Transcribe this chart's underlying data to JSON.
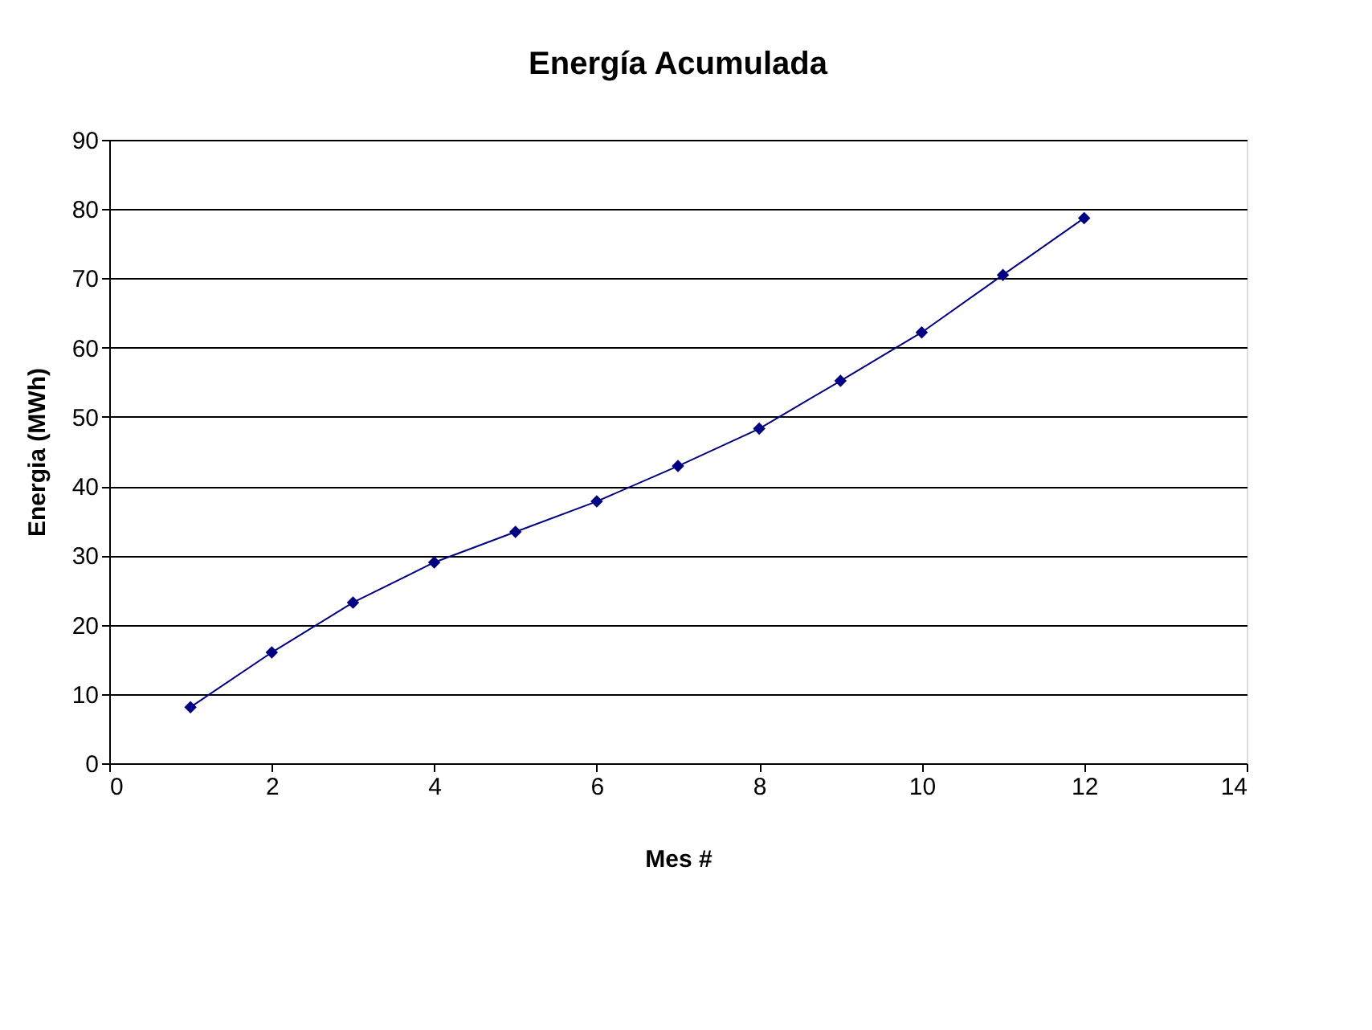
{
  "chart_data": {
    "type": "line",
    "title": "Energía Acumulada",
    "xlabel": "Mes #",
    "ylabel": "Energia (MWh)",
    "x": [
      1,
      2,
      3,
      4,
      5,
      6,
      7,
      8,
      9,
      10,
      11,
      12
    ],
    "series": [
      {
        "color": "#000080",
        "values": [
          8.1,
          16,
          23.2,
          29,
          33.4,
          37.8,
          42.9,
          48.3,
          55.2,
          62.2,
          70.5,
          78.7
        ]
      }
    ],
    "xlim": [
      0,
      14
    ],
    "xticks": [
      0,
      2,
      4,
      6,
      8,
      10,
      12,
      14
    ],
    "ylim": [
      0,
      90
    ],
    "yticks": [
      0,
      10,
      20,
      30,
      40,
      50,
      60,
      70,
      80,
      90
    ],
    "grid": "y",
    "legend": false,
    "marker": "diamond",
    "line_style": "solid"
  }
}
